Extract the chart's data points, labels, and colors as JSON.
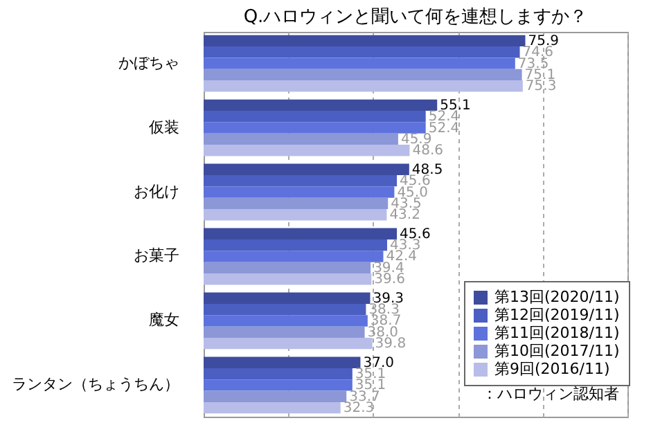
{
  "chart_data": {
    "type": "bar",
    "orientation": "horizontal",
    "title": "Q.ハロウィンと聞いて何を連想しますか？",
    "categories": [
      "かぼちゃ",
      "仮装",
      "お化け",
      "お菓子",
      "魔女",
      "ランタン（ちょうちん）"
    ],
    "series": [
      {
        "name": "第13回(2020/11)",
        "color": "#3d4c9e",
        "values": [
          75.9,
          55.1,
          48.5,
          45.6,
          39.3,
          37.0
        ],
        "value_labels": [
          "75.9",
          "55.1",
          "48.5",
          "45.6",
          "39.3",
          "37.0"
        ]
      },
      {
        "name": "第12回(2019/11)",
        "color": "#4b5ec2",
        "values": [
          74.6,
          52.4,
          45.6,
          43.3,
          38.3,
          35.1
        ],
        "value_labels": [
          "74.6",
          "52.4",
          "45.6",
          "43.3",
          "38.3",
          "35.1"
        ]
      },
      {
        "name": "第11回(2018/11)",
        "color": "#5d72dc",
        "values": [
          73.5,
          52.4,
          45.0,
          42.4,
          38.7,
          35.1
        ],
        "value_labels": [
          "73.5",
          "52.4",
          "45.0",
          "42.4",
          "38.7",
          "35.1"
        ]
      },
      {
        "name": "第10回(2017/11)",
        "color": "#8c97d8",
        "values": [
          75.1,
          45.9,
          43.5,
          39.4,
          38.0,
          33.7
        ],
        "value_labels": [
          "75.1",
          "45.9",
          "43.5",
          "39.4",
          "38.0",
          "33.7"
        ]
      },
      {
        "name": "第9回(2016/11)",
        "color": "#b7bde8",
        "values": [
          75.3,
          48.6,
          43.2,
          39.6,
          39.8,
          32.3
        ],
        "value_labels": [
          "75.3",
          "48.6",
          "43.2",
          "39.6",
          "39.8",
          "32.3"
        ]
      }
    ],
    "xlim": [
      0,
      100
    ],
    "xticks": [
      {
        "value": 0,
        "label": null
      },
      {
        "value": 20,
        "label": null
      },
      {
        "value": 40,
        "label": null
      },
      {
        "value": 60,
        "label": null
      },
      {
        "value": 80,
        "label": null
      },
      {
        "value": 100,
        "label": null
      }
    ],
    "grid": "x",
    "tick_labels": "y",
    "legend": "right",
    "annotations": [
      "：ハロウィン認知者"
    ]
  }
}
